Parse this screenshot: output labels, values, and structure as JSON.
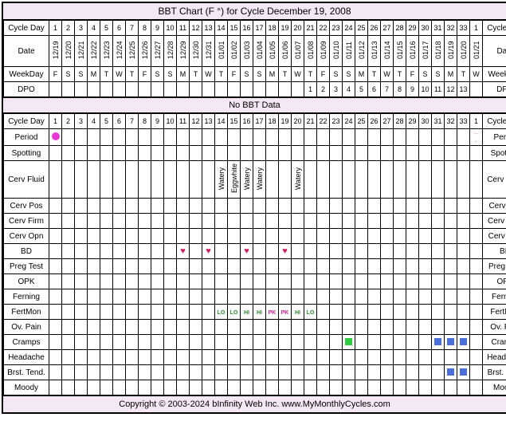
{
  "title": "BBT Chart (F °) for Cycle December 19, 2008",
  "no_data_msg": "No BBT Data",
  "footer": "Copyright © 2003-2024 bInfinity Web Inc.    www.MyMonthlyCycles.com",
  "colors": {
    "border": "#000000",
    "bg_header": "#f5e8f5",
    "period_dot": "#e838d8",
    "heart": "#d81b60",
    "cramps_sq_green": "#2ecc40",
    "cramps_sq_blue": "#4a6fd8",
    "brst_sq": "#4a6fd8",
    "fm_green": "#2e8b2e",
    "fm_pink": "#d81b9e"
  },
  "num_days": 34,
  "row_labels": {
    "cycle_day": "Cycle Day",
    "date": "Date",
    "weekday": "WeekDay",
    "dpo": "DPO",
    "period": "Period",
    "spotting": "Spotting",
    "cerv_fluid": "Cerv Fluid",
    "cerv_pos": "Cerv Pos",
    "cerv_firm": "Cerv Firm",
    "cerv_opn": "Cerv Opn",
    "bd": "BD",
    "preg_test": "Preg Test",
    "opk": "OPK",
    "ferning": "Ferning",
    "fertmon": "FertMon",
    "ov_pain": "Ov. Pain",
    "cramps": "Cramps",
    "headache": "Headache",
    "brst_tend": "Brst. Tend.",
    "brst_tend_r": "Brst. Tend",
    "moody": "Moody"
  },
  "cycle_days": [
    "1",
    "2",
    "3",
    "4",
    "5",
    "6",
    "7",
    "8",
    "9",
    "10",
    "11",
    "12",
    "13",
    "14",
    "15",
    "16",
    "17",
    "18",
    "19",
    "20",
    "21",
    "22",
    "23",
    "24",
    "25",
    "26",
    "27",
    "28",
    "29",
    "30",
    "31",
    "32",
    "33",
    "1"
  ],
  "dates": [
    "12/19",
    "12/20",
    "12/21",
    "12/22",
    "12/23",
    "12/24",
    "12/25",
    "12/26",
    "12/27",
    "12/28",
    "12/29",
    "12/30",
    "12/31",
    "01/01",
    "01/02",
    "01/03",
    "01/04",
    "01/05",
    "01/06",
    "01/07",
    "01/08",
    "01/09",
    "01/10",
    "01/11",
    "01/12",
    "01/13",
    "01/14",
    "01/15",
    "01/16",
    "01/17",
    "01/18",
    "01/19",
    "01/20",
    "01/21"
  ],
  "weekdays": [
    "F",
    "S",
    "S",
    "M",
    "T",
    "W",
    "T",
    "F",
    "S",
    "S",
    "M",
    "T",
    "W",
    "T",
    "F",
    "S",
    "S",
    "M",
    "T",
    "W",
    "T",
    "F",
    "S",
    "S",
    "M",
    "T",
    "W",
    "T",
    "F",
    "S",
    "S",
    "M",
    "T",
    "W"
  ],
  "dpo": [
    "",
    "",
    "",
    "",
    "",
    "",
    "",
    "",
    "",
    "",
    "",
    "",
    "",
    "",
    "",
    "",
    "",
    "",
    "",
    "",
    "1",
    "2",
    "3",
    "4",
    "5",
    "6",
    "7",
    "8",
    "9",
    "10",
    "11",
    "12",
    "13",
    ""
  ],
  "period": {
    "1": "dot",
    "34": "tiny"
  },
  "cerv_fluid": {
    "14": "Watery",
    "15": "Eggwhite",
    "16": "Watery",
    "17": "Watery",
    "20": "Watery"
  },
  "bd": {
    "11": true,
    "13": true,
    "16": true,
    "19": true
  },
  "fertmon": {
    "14": "LO",
    "15": "LO",
    "16": "HI",
    "17": "HI",
    "18": "PK",
    "19": "PK",
    "20": "HI",
    "21": "LO"
  },
  "fertmon_colors": {
    "LO": "#2e8b2e",
    "HI": "#2e8b2e",
    "PK": "#d81b9e"
  },
  "cramps": {
    "24": "green",
    "31": "blue",
    "32": "blue",
    "33": "blue"
  },
  "brst_tend": {
    "32": true,
    "33": true
  }
}
